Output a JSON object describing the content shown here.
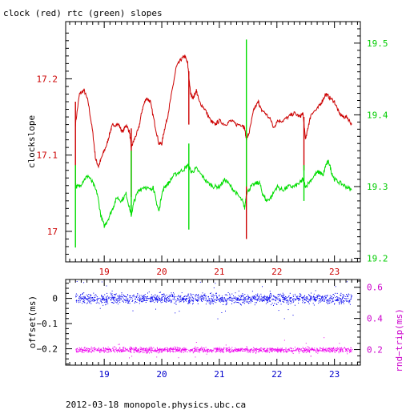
{
  "chart_data": [
    {
      "type": "line",
      "title": "clock (red) rtc (green) slopes",
      "ylabel": "clockslope",
      "xlim": [
        18.33,
        23.45
      ],
      "x_ticks": [
        "19",
        "20",
        "21",
        "22",
        "23"
      ],
      "ylim_left": [
        16.96,
        17.275
      ],
      "ylim_right": [
        19.195,
        19.53
      ],
      "left_ticks": [
        "17",
        "17.1",
        "17.2"
      ],
      "right_ticks": [
        "19.2",
        "19.3",
        "19.4",
        "19.5"
      ],
      "colors": {
        "left_series": "#cc0000",
        "right_series": "#00dd00",
        "left_ticks": "#cc0000",
        "right_ticks": "#00cc00",
        "x_ticks": "#cc0000"
      },
      "series": [
        {
          "axis": "left",
          "points": [
            [
              18.5,
              17.14
            ],
            [
              18.57,
              17.18
            ],
            [
              18.65,
              17.185
            ],
            [
              18.72,
              17.17
            ],
            [
              18.8,
              17.13
            ],
            [
              18.85,
              17.095
            ],
            [
              18.9,
              17.085
            ],
            [
              18.97,
              17.1
            ],
            [
              19.05,
              17.115
            ],
            [
              19.1,
              17.13
            ],
            [
              19.15,
              17.14
            ],
            [
              19.25,
              17.14
            ],
            [
              19.32,
              17.13
            ],
            [
              19.38,
              17.14
            ],
            [
              19.44,
              17.13
            ],
            [
              19.47,
              17.11
            ],
            [
              19.52,
              17.12
            ],
            [
              19.6,
              17.135
            ],
            [
              19.66,
              17.16
            ],
            [
              19.73,
              17.175
            ],
            [
              19.8,
              17.17
            ],
            [
              19.88,
              17.14
            ],
            [
              19.95,
              17.115
            ],
            [
              20.0,
              17.115
            ],
            [
              20.05,
              17.135
            ],
            [
              20.1,
              17.15
            ],
            [
              20.17,
              17.18
            ],
            [
              20.25,
              17.215
            ],
            [
              20.33,
              17.225
            ],
            [
              20.4,
              17.23
            ],
            [
              20.45,
              17.22
            ],
            [
              20.5,
              17.18
            ],
            [
              20.55,
              17.175
            ],
            [
              20.6,
              17.185
            ],
            [
              20.65,
              17.17
            ],
            [
              20.75,
              17.16
            ],
            [
              20.85,
              17.145
            ],
            [
              20.92,
              17.14
            ],
            [
              21.0,
              17.145
            ],
            [
              21.1,
              17.14
            ],
            [
              21.2,
              17.145
            ],
            [
              21.3,
              17.14
            ],
            [
              21.4,
              17.14
            ],
            [
              21.44,
              17.135
            ],
            [
              21.47,
              17.12
            ],
            [
              21.52,
              17.13
            ],
            [
              21.6,
              17.16
            ],
            [
              21.68,
              17.17
            ],
            [
              21.72,
              17.16
            ],
            [
              21.8,
              17.155
            ],
            [
              21.9,
              17.145
            ],
            [
              21.95,
              17.135
            ],
            [
              22.0,
              17.145
            ],
            [
              22.1,
              17.145
            ],
            [
              22.2,
              17.15
            ],
            [
              22.3,
              17.155
            ],
            [
              22.4,
              17.15
            ],
            [
              22.45,
              17.155
            ],
            [
              22.5,
              17.12
            ],
            [
              22.55,
              17.14
            ],
            [
              22.6,
              17.155
            ],
            [
              22.7,
              17.16
            ],
            [
              22.78,
              17.17
            ],
            [
              22.85,
              17.18
            ],
            [
              22.92,
              17.175
            ],
            [
              23.0,
              17.17
            ],
            [
              23.08,
              17.155
            ],
            [
              23.15,
              17.15
            ],
            [
              23.22,
              17.15
            ],
            [
              23.3,
              17.14
            ]
          ]
        },
        {
          "axis": "right",
          "points": [
            [
              18.5,
              19.3
            ],
            [
              18.57,
              19.3
            ],
            [
              18.65,
              19.31
            ],
            [
              18.72,
              19.315
            ],
            [
              18.8,
              19.305
            ],
            [
              18.88,
              19.29
            ],
            [
              18.94,
              19.26
            ],
            [
              19.0,
              19.245
            ],
            [
              19.07,
              19.255
            ],
            [
              19.15,
              19.27
            ],
            [
              19.22,
              19.285
            ],
            [
              19.3,
              19.28
            ],
            [
              19.38,
              19.29
            ],
            [
              19.44,
              19.27
            ],
            [
              19.47,
              19.26
            ],
            [
              19.52,
              19.28
            ],
            [
              19.6,
              19.295
            ],
            [
              19.7,
              19.3
            ],
            [
              19.8,
              19.295
            ],
            [
              19.85,
              19.3
            ],
            [
              19.9,
              19.28
            ],
            [
              19.95,
              19.265
            ],
            [
              20.0,
              19.29
            ],
            [
              20.05,
              19.3
            ],
            [
              20.12,
              19.305
            ],
            [
              20.2,
              19.315
            ],
            [
              20.3,
              19.32
            ],
            [
              20.4,
              19.325
            ],
            [
              20.45,
              19.33
            ],
            [
              20.52,
              19.32
            ],
            [
              20.6,
              19.325
            ],
            [
              20.7,
              19.315
            ],
            [
              20.8,
              19.305
            ],
            [
              20.9,
              19.3
            ],
            [
              21.0,
              19.3
            ],
            [
              21.1,
              19.31
            ],
            [
              21.2,
              19.3
            ],
            [
              21.3,
              19.29
            ],
            [
              21.4,
              19.28
            ],
            [
              21.44,
              19.27
            ],
            [
              21.47,
              19.29
            ],
            [
              21.55,
              19.3
            ],
            [
              21.65,
              19.305
            ],
            [
              21.7,
              19.305
            ],
            [
              21.75,
              19.29
            ],
            [
              21.82,
              19.28
            ],
            [
              21.9,
              19.285
            ],
            [
              22.0,
              19.3
            ],
            [
              22.1,
              19.295
            ],
            [
              22.2,
              19.3
            ],
            [
              22.3,
              19.3
            ],
            [
              22.4,
              19.305
            ],
            [
              22.45,
              19.31
            ],
            [
              22.5,
              19.3
            ],
            [
              22.6,
              19.31
            ],
            [
              22.7,
              19.32
            ],
            [
              22.75,
              19.32
            ],
            [
              22.8,
              19.315
            ],
            [
              22.85,
              19.33
            ],
            [
              22.9,
              19.335
            ],
            [
              22.95,
              19.32
            ],
            [
              23.0,
              19.31
            ],
            [
              23.1,
              19.305
            ],
            [
              23.2,
              19.3
            ],
            [
              23.3,
              19.295
            ]
          ]
        }
      ],
      "spikes": [
        {
          "x": 18.5,
          "axis": "left",
          "from": 17.17,
          "to": 17.06
        },
        {
          "x": 19.47,
          "axis": "left",
          "from": 17.135,
          "to": 17.045
        },
        {
          "x": 20.47,
          "axis": "left",
          "from": 17.21,
          "to": 17.14
        },
        {
          "x": 21.47,
          "axis": "left",
          "from": 17.12,
          "to": 16.99
        },
        {
          "x": 22.47,
          "axis": "left",
          "from": 17.15,
          "to": 17.08
        },
        {
          "x": 18.5,
          "axis": "right",
          "from": 19.33,
          "to": 19.215
        },
        {
          "x": 19.47,
          "axis": "right",
          "from": 19.35,
          "to": 19.26
        },
        {
          "x": 20.47,
          "axis": "right",
          "from": 19.36,
          "to": 19.24
        },
        {
          "x": 21.47,
          "axis": "right",
          "from": 19.505,
          "to": 19.3
        },
        {
          "x": 22.47,
          "axis": "right",
          "from": 19.33,
          "to": 19.28
        }
      ]
    },
    {
      "type": "scatter",
      "ylabel_left": "offset(ms)",
      "ylabel_right": "rnd−trip(ms)",
      "xlim": [
        18.33,
        23.45
      ],
      "x_ticks": [
        "19",
        "20",
        "21",
        "22",
        "23"
      ],
      "ylim_left": [
        -0.265,
        0.075
      ],
      "ylim_right": [
        0.1,
        0.65
      ],
      "left_ticks": [
        "0",
        "−0.1",
        "−0.2"
      ],
      "right_ticks": [
        "0.2",
        "0.4",
        "0.6"
      ],
      "colors": {
        "offset": "#0000ee",
        "round_trip": "#ee00ee",
        "left_ticks": "#000000",
        "right_ticks": "#cc00cc",
        "x_ticks": "#0000cc"
      },
      "series": [
        {
          "axis": "left",
          "x_range": [
            18.5,
            23.3
          ],
          "level": 0.0,
          "spread": 0.01
        },
        {
          "axis": "right",
          "x_range": [
            18.5,
            23.3
          ],
          "level": 0.2,
          "spread": 0.008
        }
      ]
    }
  ],
  "footer": "2012-03-18 monopole.physics.ubc.ca"
}
